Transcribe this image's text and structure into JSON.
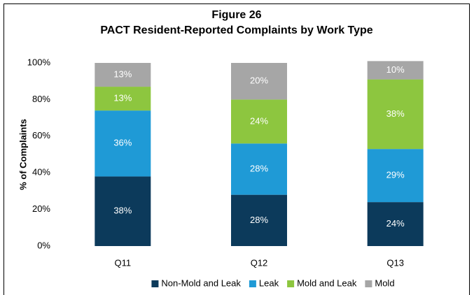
{
  "chart_data": {
    "type": "stacked-bar",
    "title": "Figure 26",
    "subtitle": "PACT Resident-Reported Complaints by Work Type",
    "ylabel": "% of Complaints",
    "categories": [
      "Q11",
      "Q12",
      "Q13"
    ],
    "series": [
      {
        "name": "Non-Mold and Leak",
        "color": "#0c3a5b",
        "values": [
          38,
          28,
          24
        ],
        "value_labels": [
          "38%",
          "28%",
          "24%"
        ]
      },
      {
        "name": "Leak",
        "color": "#1f9ad6",
        "values": [
          36,
          28,
          29
        ],
        "value_labels": [
          "36%",
          "28%",
          "29%"
        ]
      },
      {
        "name": "Mold and Leak",
        "color": "#8dc63f",
        "values": [
          13,
          24,
          38
        ],
        "value_labels": [
          "13%",
          "24%",
          "38%"
        ]
      },
      {
        "name": "Mold",
        "color": "#a6a6a6",
        "values": [
          13,
          20,
          10
        ],
        "value_labels": [
          "13%",
          "20%",
          "10%"
        ]
      }
    ],
    "ylim": [
      0,
      100
    ],
    "yticks": [
      {
        "value": 0,
        "label": "0%"
      },
      {
        "value": 20,
        "label": "20%"
      },
      {
        "value": 40,
        "label": "40%"
      },
      {
        "value": 60,
        "label": "60%"
      },
      {
        "value": 80,
        "label": "80%"
      },
      {
        "value": 100,
        "label": "100%"
      }
    ],
    "legend": "bottom"
  }
}
